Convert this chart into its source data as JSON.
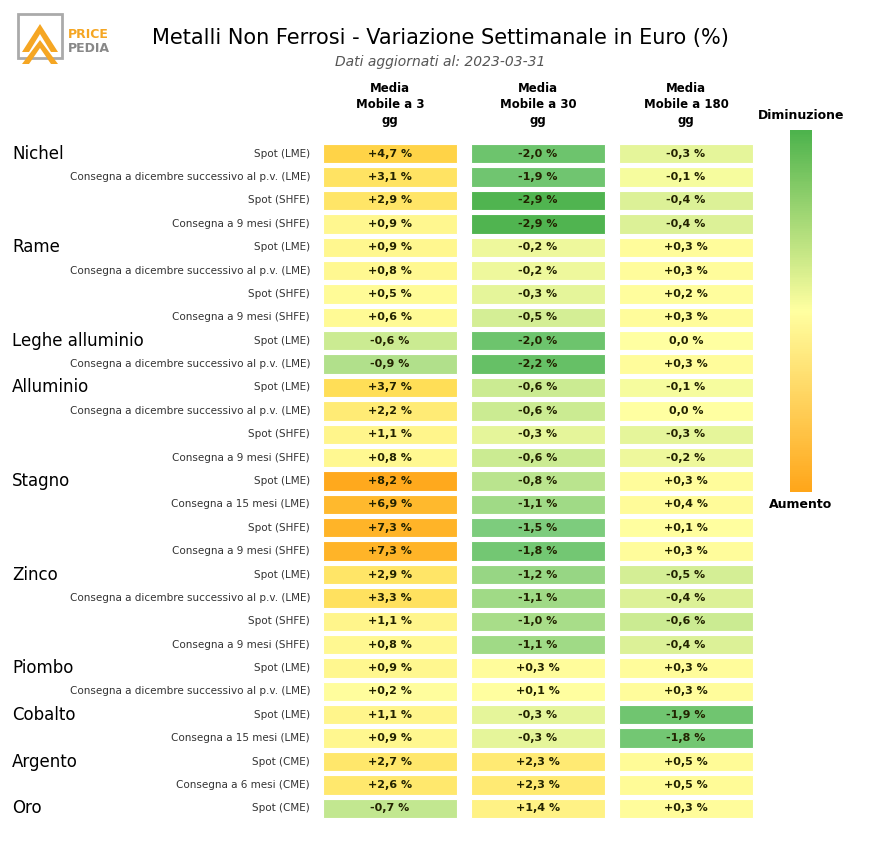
{
  "title": "Metalli Non Ferrosi - Variazione Settimanale in Euro (%)",
  "subtitle": "Dati aggiornati al: 2023-03-31",
  "col_headers": [
    "Media\nMobile a 3\ngg",
    "Media\nMobile a 30\ngg",
    "Media\nMobile a 180\ngg"
  ],
  "rows": [
    {
      "group": "Nichel",
      "label": "Spot (LME)",
      "values": [
        4.7,
        -2.0,
        -0.3
      ]
    },
    {
      "group": "",
      "label": "Consegna a dicembre successivo al p.v. (LME)",
      "values": [
        3.1,
        -1.9,
        -0.1
      ]
    },
    {
      "group": "",
      "label": "Spot (SHFE)",
      "values": [
        2.9,
        -2.9,
        -0.4
      ]
    },
    {
      "group": "",
      "label": "Consegna a 9 mesi (SHFE)",
      "values": [
        0.9,
        -2.9,
        -0.4
      ]
    },
    {
      "group": "Rame",
      "label": "Spot (LME)",
      "values": [
        0.9,
        -0.2,
        0.3
      ]
    },
    {
      "group": "",
      "label": "Consegna a dicembre successivo al p.v. (LME)",
      "values": [
        0.8,
        -0.2,
        0.3
      ]
    },
    {
      "group": "",
      "label": "Spot (SHFE)",
      "values": [
        0.5,
        -0.3,
        0.2
      ]
    },
    {
      "group": "",
      "label": "Consegna a 9 mesi (SHFE)",
      "values": [
        0.6,
        -0.5,
        0.3
      ]
    },
    {
      "group": "Leghe alluminio",
      "label": "Spot (LME)",
      "values": [
        -0.6,
        -2.0,
        0.0
      ]
    },
    {
      "group": "",
      "label": "Consegna a dicembre successivo al p.v. (LME)",
      "values": [
        -0.9,
        -2.2,
        0.3
      ]
    },
    {
      "group": "Alluminio",
      "label": "Spot (LME)",
      "values": [
        3.7,
        -0.6,
        -0.1
      ]
    },
    {
      "group": "",
      "label": "Consegna a dicembre successivo al p.v. (LME)",
      "values": [
        2.2,
        -0.6,
        0.0
      ]
    },
    {
      "group": "",
      "label": "Spot (SHFE)",
      "values": [
        1.1,
        -0.3,
        -0.3
      ]
    },
    {
      "group": "",
      "label": "Consegna a 9 mesi (SHFE)",
      "values": [
        0.8,
        -0.6,
        -0.2
      ]
    },
    {
      "group": "Stagno",
      "label": "Spot (LME)",
      "values": [
        8.2,
        -0.8,
        0.3
      ]
    },
    {
      "group": "",
      "label": "Consegna a 15 mesi (LME)",
      "values": [
        6.9,
        -1.1,
        0.4
      ]
    },
    {
      "group": "",
      "label": "Spot (SHFE)",
      "values": [
        7.3,
        -1.5,
        0.1
      ]
    },
    {
      "group": "",
      "label": "Consegna a 9 mesi (SHFE)",
      "values": [
        7.3,
        -1.8,
        0.3
      ]
    },
    {
      "group": "Zinco",
      "label": "Spot (LME)",
      "values": [
        2.9,
        -1.2,
        -0.5
      ]
    },
    {
      "group": "",
      "label": "Consegna a dicembre successivo al p.v. (LME)",
      "values": [
        3.3,
        -1.1,
        -0.4
      ]
    },
    {
      "group": "",
      "label": "Spot (SHFE)",
      "values": [
        1.1,
        -1.0,
        -0.6
      ]
    },
    {
      "group": "",
      "label": "Consegna a 9 mesi (SHFE)",
      "values": [
        0.8,
        -1.1,
        -0.4
      ]
    },
    {
      "group": "Piombo",
      "label": "Spot (LME)",
      "values": [
        0.9,
        0.3,
        0.3
      ]
    },
    {
      "group": "",
      "label": "Consegna a dicembre successivo al p.v. (LME)",
      "values": [
        0.2,
        0.1,
        0.3
      ]
    },
    {
      "group": "Cobalto",
      "label": "Spot (LME)",
      "values": [
        1.1,
        -0.3,
        -1.9
      ]
    },
    {
      "group": "",
      "label": "Consegna a 15 mesi (LME)",
      "values": [
        0.9,
        -0.3,
        -1.8
      ]
    },
    {
      "group": "Argento",
      "label": "Spot (CME)",
      "values": [
        2.7,
        2.3,
        0.5
      ]
    },
    {
      "group": "",
      "label": "Consegna a 6 mesi (CME)",
      "values": [
        2.6,
        2.3,
        0.5
      ]
    },
    {
      "group": "Oro",
      "label": "Spot (CME)",
      "values": [
        -0.7,
        1.4,
        0.3
      ]
    }
  ],
  "colorbar_label_top": "Diminuzione",
  "colorbar_label_bottom": "Aumento",
  "background_color": "#ffffff",
  "title_fontsize": 15,
  "subtitle_fontsize": 10,
  "group_fontsize": 12,
  "label_fontsize": 7.5,
  "cell_fontsize": 8,
  "header_fontsize": 8.5,
  "logo_color_orange": "#F5A623",
  "logo_color_gray": "#888888"
}
